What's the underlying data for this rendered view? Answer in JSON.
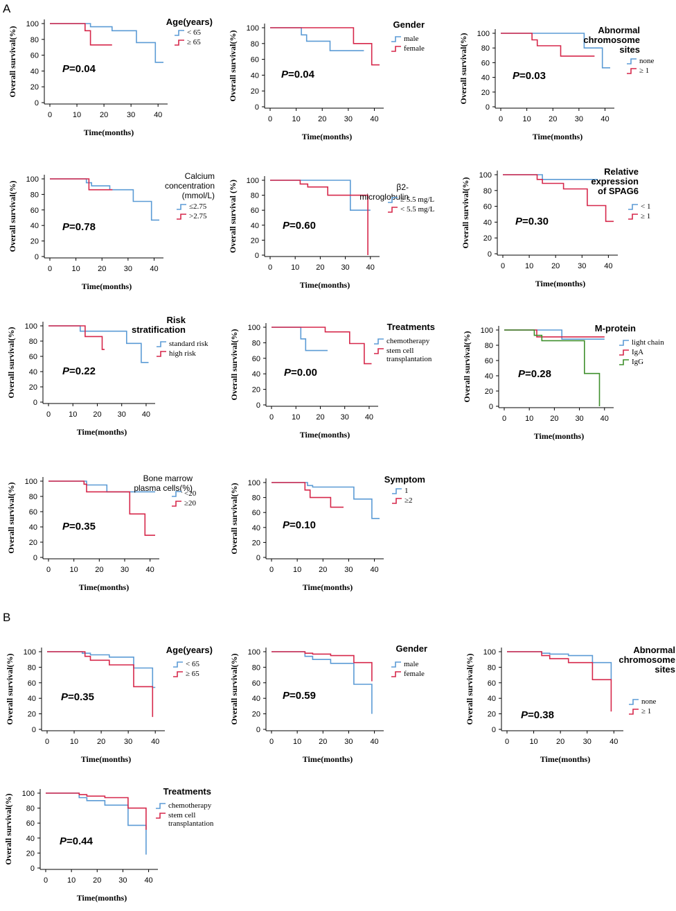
{
  "panel_labels": {
    "A": "A",
    "B": "B"
  },
  "common": {
    "ylabel": "Overall survival(%)",
    "xlabel": "Time(months)",
    "y_ticks": [
      "0",
      "20",
      "40",
      "60",
      "80",
      "100"
    ],
    "x_ticks": [
      "0",
      "10",
      "20",
      "30",
      "40"
    ]
  },
  "colors": {
    "blue": "#5b9bd5",
    "red": "#d6274a",
    "green": "#3f8f2c"
  },
  "chart_data": [
    {
      "type": "line",
      "panel": "A",
      "title_lines": [
        "Age(years)"
      ],
      "title_style": "bold",
      "p_prefix": "P",
      "p_value": "=0.04",
      "xlabel": "Time(months)",
      "ylabel": "Overall survival(%)",
      "xlim": [
        0,
        42
      ],
      "ylim": [
        0,
        100
      ],
      "series": [
        {
          "name": "< 65",
          "color": "blue",
          "x": [
            0,
            15,
            15,
            23,
            23,
            32,
            32,
            39,
            39,
            42
          ],
          "y": [
            100,
            100,
            96,
            96,
            91,
            91,
            76,
            76,
            51,
            51
          ]
        },
        {
          "name": "≥ 65",
          "color": "red",
          "x": [
            0,
            13,
            13,
            15,
            15,
            23
          ],
          "y": [
            100,
            100,
            91,
            91,
            73,
            73
          ]
        }
      ]
    },
    {
      "type": "line",
      "panel": "A",
      "title_lines": [
        "Gender"
      ],
      "title_style": "bold",
      "p_prefix": "P",
      "p_value": "=0.04",
      "xlabel": "Time(months)",
      "ylabel": "Overall survival(%)",
      "xlim": [
        0,
        42
      ],
      "ylim": [
        0,
        100
      ],
      "series": [
        {
          "name": "male",
          "color": "blue",
          "x": [
            0,
            12,
            12,
            14,
            14,
            23,
            23,
            36
          ],
          "y": [
            100,
            100,
            91,
            91,
            83,
            83,
            71,
            71
          ]
        },
        {
          "name": "female",
          "color": "red",
          "x": [
            0,
            32,
            32,
            39,
            39,
            42
          ],
          "y": [
            100,
            100,
            80,
            80,
            53,
            53
          ]
        }
      ]
    },
    {
      "type": "line",
      "panel": "A",
      "title_lines": [
        "Abnormal",
        "chromosome",
        "sites"
      ],
      "title_style": "bold-sm",
      "p_prefix": "P",
      "p_value": "=0.03",
      "xlabel": "Time(months)",
      "ylabel": "Overall survival(%)",
      "xlim": [
        0,
        42
      ],
      "ylim": [
        0,
        100
      ],
      "series": [
        {
          "name": "none",
          "color": "blue",
          "x": [
            0,
            32,
            32,
            39,
            39,
            42
          ],
          "y": [
            100,
            100,
            80,
            80,
            53,
            53
          ]
        },
        {
          "name": "≥ 1",
          "color": "red",
          "x": [
            0,
            12,
            12,
            14,
            14,
            23,
            23,
            36
          ],
          "y": [
            100,
            100,
            91,
            91,
            83,
            83,
            69,
            69
          ]
        }
      ]
    },
    {
      "type": "line",
      "panel": "A",
      "title_lines": [
        "Calcium",
        "concentration",
        "(mmol/L)"
      ],
      "title_style": "plain",
      "p_prefix": "P",
      "p_value": "=0.78",
      "xlabel": "Time(months)",
      "ylabel": "Overall survival(%)",
      "xlim": [
        0,
        42
      ],
      "ylim": [
        0,
        100
      ],
      "series": [
        {
          "name": "≤2.75",
          "color": "blue",
          "x": [
            0,
            14,
            14,
            16,
            16,
            23,
            23,
            32,
            32,
            39,
            39,
            42
          ],
          "y": [
            100,
            100,
            95,
            95,
            91,
            91,
            86,
            86,
            71,
            71,
            47,
            47
          ]
        },
        {
          "name": ">2.75",
          "color": "red",
          "x": [
            0,
            15,
            15,
            24
          ],
          "y": [
            100,
            100,
            86,
            86
          ]
        }
      ]
    },
    {
      "type": "line",
      "panel": "A",
      "title_lines": [
        "β2-",
        "microglobulin"
      ],
      "title_style": "plain",
      "p_prefix": "P",
      "p_value": "=0.60",
      "xlabel": "Time(months)",
      "ylabel": "Overall survival (%)",
      "xlim": [
        0,
        42
      ],
      "ylim": [
        0,
        100
      ],
      "series": [
        {
          "name": "≥ 5.5 mg/L",
          "color": "blue",
          "x": [
            0,
            32,
            32,
            40
          ],
          "y": [
            100,
            100,
            60,
            60
          ]
        },
        {
          "name": "< 5.5 mg/L",
          "color": "red",
          "x": [
            0,
            12,
            12,
            15,
            15,
            23,
            23,
            39,
            39
          ],
          "y": [
            100,
            100,
            95,
            95,
            91,
            91,
            80,
            80,
            0
          ]
        }
      ]
    },
    {
      "type": "line",
      "panel": "A",
      "title_lines": [
        "Relative",
        "expression",
        "of SPAG6"
      ],
      "title_style": "bold",
      "p_prefix": "P",
      "p_value": "=0.30",
      "xlabel": "Time(months)",
      "ylabel": "Overall survival(%)",
      "xlim": [
        0,
        42
      ],
      "ylim": [
        0,
        100
      ],
      "series": [
        {
          "name": "< 1",
          "color": "blue",
          "x": [
            0,
            15,
            15,
            36
          ],
          "y": [
            100,
            100,
            94,
            94
          ]
        },
        {
          "name": "≥ 1",
          "color": "red",
          "x": [
            0,
            13,
            13,
            15,
            15,
            23,
            23,
            32,
            32,
            39,
            39,
            42
          ],
          "y": [
            100,
            100,
            94,
            94,
            89,
            89,
            82,
            82,
            61,
            61,
            41,
            41
          ]
        }
      ]
    },
    {
      "type": "line",
      "panel": "A",
      "title_lines": [
        "Risk",
        "stratification"
      ],
      "title_style": "bold",
      "p_prefix": "P",
      "p_value": "=0.22",
      "xlabel": "Time(months)",
      "ylabel": "Overall survival(%)",
      "xlim": [
        0,
        42
      ],
      "ylim": [
        0,
        100
      ],
      "series": [
        {
          "name": "standard risk",
          "color": "blue",
          "x": [
            0,
            13,
            13,
            32,
            32,
            38,
            38,
            41
          ],
          "y": [
            100,
            100,
            93,
            93,
            77,
            77,
            52,
            52
          ]
        },
        {
          "name": "high risk",
          "color": "red",
          "x": [
            0,
            15,
            15,
            22,
            22,
            23
          ],
          "y": [
            100,
            100,
            86,
            86,
            69,
            69
          ]
        }
      ]
    },
    {
      "type": "line",
      "panel": "A",
      "title_lines": [
        "Treatments"
      ],
      "title_style": "bold",
      "p_prefix": "P",
      "p_value": "=0.00",
      "xlabel": "Time(months)",
      "ylabel": "Overall survival(%)",
      "xlim": [
        0,
        42
      ],
      "ylim": [
        0,
        100
      ],
      "series": [
        {
          "name": "chemotherapy",
          "color": "blue",
          "x": [
            0,
            12,
            12,
            14,
            14,
            23
          ],
          "y": [
            100,
            100,
            85,
            85,
            70,
            70
          ]
        },
        {
          "name": "stem cell transplantation",
          "color": "red",
          "x": [
            0,
            22,
            22,
            32,
            32,
            38,
            38,
            41
          ],
          "y": [
            100,
            100,
            94,
            94,
            79,
            79,
            53,
            53
          ]
        }
      ]
    },
    {
      "type": "line",
      "panel": "A",
      "title_lines": [
        "M-protein"
      ],
      "title_style": "bold",
      "p_prefix": "P",
      "p_value": "=0.28",
      "xlabel": "Time(months)",
      "ylabel": "Overall survival(%)",
      "xlim": [
        0,
        42
      ],
      "ylim": [
        0,
        100
      ],
      "series": [
        {
          "name": "light chain",
          "color": "blue",
          "x": [
            0,
            23,
            23,
            40
          ],
          "y": [
            100,
            100,
            88,
            88
          ]
        },
        {
          "name": "IgA",
          "color": "red",
          "x": [
            0,
            13,
            13,
            40
          ],
          "y": [
            100,
            100,
            91,
            91
          ]
        },
        {
          "name": "IgG",
          "color": "green",
          "x": [
            0,
            12,
            12,
            15,
            15,
            32,
            32,
            38,
            38
          ],
          "y": [
            100,
            100,
            93,
            93,
            86,
            86,
            43,
            43,
            0
          ]
        }
      ]
    },
    {
      "type": "line",
      "panel": "A",
      "title_lines": [
        "Bone marrow",
        "plasma cells(%)"
      ],
      "title_style": "plain",
      "p_prefix": "P",
      "p_value": "=0.35",
      "xlabel": "Time(months)",
      "ylabel": "Overall survival(%)",
      "xlim": [
        0,
        42
      ],
      "ylim": [
        0,
        100
      ],
      "series": [
        {
          "name": "<20",
          "color": "blue",
          "x": [
            0,
            15,
            15,
            23,
            23,
            42
          ],
          "y": [
            100,
            100,
            95,
            95,
            86,
            86
          ]
        },
        {
          "name": "≥20",
          "color": "red",
          "x": [
            0,
            14,
            14,
            15,
            15,
            32,
            32,
            38,
            38,
            42
          ],
          "y": [
            100,
            100,
            96,
            96,
            86,
            86,
            57,
            57,
            29,
            29
          ]
        }
      ]
    },
    {
      "type": "line",
      "panel": "A",
      "title_lines": [
        "Symptom"
      ],
      "title_style": "bold",
      "p_prefix": "P",
      "p_value": "=0.10",
      "xlabel": "Time(months)",
      "ylabel": "Overall survival(%)",
      "xlim": [
        0,
        42
      ],
      "ylim": [
        0,
        100
      ],
      "series": [
        {
          "name": "1",
          "color": "blue",
          "x": [
            0,
            14,
            14,
            16,
            16,
            32,
            32,
            39,
            39,
            42
          ],
          "y": [
            100,
            100,
            96,
            96,
            94,
            94,
            78,
            78,
            52,
            52
          ]
        },
        {
          "name": "≥2",
          "color": "red",
          "x": [
            0,
            13,
            13,
            15,
            15,
            23,
            23,
            28
          ],
          "y": [
            100,
            100,
            90,
            90,
            80,
            80,
            67,
            67
          ]
        }
      ]
    },
    {
      "type": "line",
      "panel": "B",
      "title_lines": [
        "Age(years)"
      ],
      "title_style": "bold",
      "p_prefix": "P",
      "p_value": "=0.35",
      "xlabel": "Time(months)",
      "ylabel": "Overall survival(%)",
      "xlim": [
        0,
        42
      ],
      "ylim": [
        0,
        100
      ],
      "series": [
        {
          "name": "< 65",
          "color": "blue",
          "x": [
            0,
            13,
            13,
            16,
            16,
            23,
            23,
            32,
            32,
            39,
            39,
            40
          ],
          "y": [
            100,
            100,
            98,
            98,
            96,
            96,
            93,
            93,
            79,
            79,
            54,
            54
          ]
        },
        {
          "name": "≥ 65",
          "color": "red",
          "x": [
            0,
            14,
            14,
            16,
            16,
            23,
            23,
            32,
            32,
            39,
            39
          ],
          "y": [
            100,
            100,
            94,
            94,
            89,
            89,
            83,
            83,
            55,
            55,
            16
          ]
        }
      ]
    },
    {
      "type": "line",
      "panel": "B",
      "title_lines": [
        "Gender"
      ],
      "title_style": "bold",
      "p_prefix": "P",
      "p_value": "=0.59",
      "xlabel": "Time(months)",
      "ylabel": "Overall survival(%)",
      "xlim": [
        0,
        42
      ],
      "ylim": [
        0,
        100
      ],
      "series": [
        {
          "name": "male",
          "color": "blue",
          "x": [
            0,
            13,
            13,
            16,
            16,
            23,
            23,
            32,
            32,
            39,
            39
          ],
          "y": [
            100,
            100,
            94,
            94,
            90,
            90,
            85,
            85,
            58,
            58,
            20
          ]
        },
        {
          "name": "female",
          "color": "red",
          "x": [
            0,
            13,
            13,
            16,
            16,
            23,
            23,
            32,
            32,
            39,
            39
          ],
          "y": [
            100,
            100,
            98,
            98,
            97,
            97,
            95,
            95,
            86,
            86,
            62
          ]
        }
      ]
    },
    {
      "type": "line",
      "panel": "B",
      "title_lines": [
        "Abnormal",
        "chromosome",
        "sites"
      ],
      "title_style": "bold",
      "p_prefix": "P",
      "p_value": "=0.38",
      "xlabel": "Time(months)",
      "ylabel": "Overall survival(%)",
      "xlim": [
        0,
        42
      ],
      "ylim": [
        0,
        100
      ],
      "series": [
        {
          "name": "none",
          "color": "blue",
          "x": [
            0,
            13,
            13,
            16,
            16,
            23,
            23,
            32,
            32,
            39,
            39
          ],
          "y": [
            100,
            100,
            98,
            98,
            97,
            97,
            95,
            95,
            86,
            86,
            64
          ]
        },
        {
          "name": "≥ 1",
          "color": "red",
          "x": [
            0,
            13,
            13,
            16,
            16,
            23,
            23,
            32,
            32,
            39,
            39
          ],
          "y": [
            100,
            100,
            95,
            95,
            91,
            91,
            86,
            86,
            64,
            64,
            23
          ]
        }
      ]
    },
    {
      "type": "line",
      "panel": "B",
      "title_lines": [
        "Treatments"
      ],
      "title_style": "bold",
      "p_prefix": "P",
      "p_value": "=0.44",
      "xlabel": "Time(months)",
      "ylabel": "Overall survival(%)",
      "xlim": [
        0,
        42
      ],
      "ylim": [
        0,
        100
      ],
      "series": [
        {
          "name": "chemotherapy",
          "color": "blue",
          "x": [
            0,
            13,
            13,
            16,
            16,
            23,
            23,
            32,
            32,
            39,
            39
          ],
          "y": [
            100,
            100,
            94,
            94,
            90,
            90,
            84,
            84,
            57,
            57,
            18
          ]
        },
        {
          "name": "stem cell transplantation",
          "color": "red",
          "x": [
            0,
            13,
            13,
            16,
            16,
            23,
            23,
            32,
            32,
            39,
            39
          ],
          "y": [
            100,
            100,
            98,
            98,
            96,
            96,
            94,
            94,
            80,
            80,
            51
          ]
        }
      ]
    }
  ]
}
